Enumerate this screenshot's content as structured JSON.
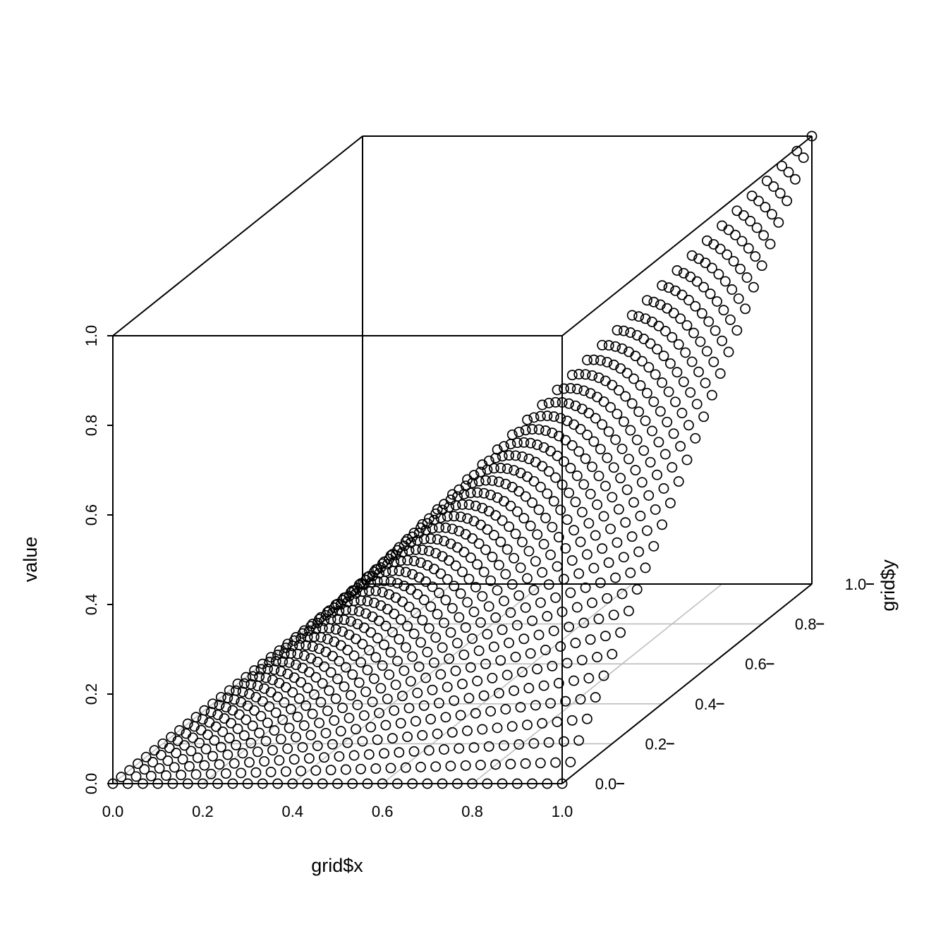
{
  "chart_data": {
    "type": "scatter3d",
    "title": "",
    "xlabel": "grid$x",
    "ylabel": "grid$y",
    "zlabel": "value",
    "xlim": [
      0,
      1
    ],
    "ylim": [
      0,
      1
    ],
    "zlim": [
      0,
      1
    ],
    "x_ticks": [
      "0.0",
      "0.2",
      "0.4",
      "0.6",
      "0.8",
      "1.0"
    ],
    "y_ticks": [
      "0.0",
      "0.2",
      "0.4",
      "0.6",
      "0.8",
      "1.0"
    ],
    "z_ticks": [
      "0.0",
      "0.2",
      "0.4",
      "0.6",
      "0.8",
      "1.0"
    ],
    "grid": true,
    "point_symbol": "open-circle",
    "grid_x": {
      "from": 0,
      "to": 1,
      "n": 31
    },
    "grid_y": {
      "from": 0,
      "to": 1,
      "n": 31
    },
    "value_rule": "value = grid$x * grid$y",
    "series": [
      {
        "name": "points",
        "color": "#000000"
      }
    ],
    "colors": {
      "axes": "#000000",
      "grid": "#bebebe",
      "points": "#000000"
    }
  }
}
